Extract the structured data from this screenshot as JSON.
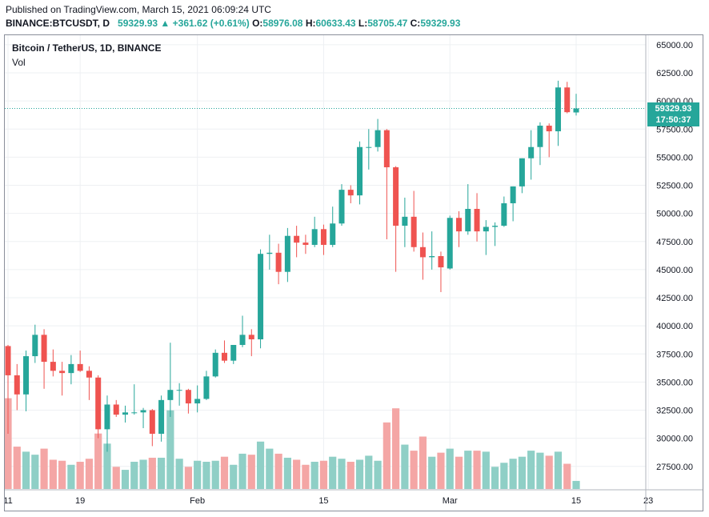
{
  "header": {
    "published": "Published on TradingView.com, March 15, 2021 06:09:24 UTC",
    "symbol": "BINANCE:BTCUSDT, D",
    "last": "59329.93",
    "arrow": "▲",
    "change": "+361.62 (+0.61%)",
    "o_label": "O:",
    "o_value": "58976.08",
    "h_label": "H:",
    "h_value": "60633.43",
    "l_label": "L:",
    "l_value": "58705.47",
    "c_label": "C:",
    "c_value": "59329.93"
  },
  "legend": {
    "title": "Bitcoin / TetherUS, 1D, BINANCE",
    "vol": "Vol"
  },
  "price_tag": {
    "price": "59329.93",
    "countdown": "17:50:37"
  },
  "colors": {
    "up": "#26a69a",
    "down": "#ef5350",
    "vol_up": "#8fcfc6",
    "vol_down": "#f4a6a5",
    "grid": "#eef0f3",
    "dotted": "#26a69a"
  },
  "chart_data": {
    "type": "candlestick",
    "title": "Bitcoin / TetherUS, 1D, BINANCE",
    "ylim": [
      23750,
      65625
    ],
    "y_ticks": [
      25000,
      27500,
      30000,
      32500,
      35000,
      37500,
      40000,
      42500,
      45000,
      47500,
      50000,
      52500,
      55000,
      57500,
      60000,
      62500,
      65000
    ],
    "y_tick_labels": [
      "27500.00",
      "30000.00",
      "32500.00",
      "35000.00",
      "37500.00",
      "40000.00",
      "42500.00",
      "45000.00",
      "47500.00",
      "50000.00",
      "52500.00",
      "55000.00",
      "57500.00",
      "60000.00",
      "62500.00",
      "65000.00"
    ],
    "x_ticks": [
      "11",
      "19",
      "Feb",
      "15",
      "Mar",
      "15",
      "23"
    ],
    "x_tick_dates": [
      "2021-01-11",
      "2021-01-19",
      "2021-02-01",
      "2021-02-15",
      "2021-03-01",
      "2021-03-15",
      "2021-03-23"
    ],
    "last_price": 59329.93,
    "volume_max_ratio": 1.0,
    "candles": [
      {
        "date": "2021-01-11",
        "o": 38200,
        "h": 38300,
        "l": 30400,
        "c": 35600,
        "v": 0.9
      },
      {
        "date": "2021-01-12",
        "o": 35600,
        "h": 36600,
        "l": 32500,
        "c": 33900,
        "v": 0.42
      },
      {
        "date": "2021-01-13",
        "o": 33900,
        "h": 37800,
        "l": 32400,
        "c": 37300,
        "v": 0.37
      },
      {
        "date": "2021-01-14",
        "o": 37300,
        "h": 40100,
        "l": 36700,
        "c": 39200,
        "v": 0.34
      },
      {
        "date": "2021-01-15",
        "o": 39200,
        "h": 39700,
        "l": 34400,
        "c": 36800,
        "v": 0.4
      },
      {
        "date": "2021-01-16",
        "o": 36800,
        "h": 37900,
        "l": 35500,
        "c": 36000,
        "v": 0.29
      },
      {
        "date": "2021-01-17",
        "o": 36000,
        "h": 36800,
        "l": 33800,
        "c": 35800,
        "v": 0.28
      },
      {
        "date": "2021-01-18",
        "o": 35800,
        "h": 37400,
        "l": 34800,
        "c": 36600,
        "v": 0.24
      },
      {
        "date": "2021-01-19",
        "o": 36600,
        "h": 37800,
        "l": 35900,
        "c": 36000,
        "v": 0.27
      },
      {
        "date": "2021-01-20",
        "o": 36000,
        "h": 36400,
        "l": 33400,
        "c": 35400,
        "v": 0.3
      },
      {
        "date": "2021-01-21",
        "o": 35400,
        "h": 35600,
        "l": 30000,
        "c": 30800,
        "v": 0.55
      },
      {
        "date": "2021-01-22",
        "o": 30800,
        "h": 33800,
        "l": 28800,
        "c": 33000,
        "v": 0.45
      },
      {
        "date": "2021-01-23",
        "o": 33000,
        "h": 33400,
        "l": 31900,
        "c": 32100,
        "v": 0.22
      },
      {
        "date": "2021-01-24",
        "o": 32100,
        "h": 32900,
        "l": 31400,
        "c": 32300,
        "v": 0.19
      },
      {
        "date": "2021-01-25",
        "o": 32300,
        "h": 34800,
        "l": 32100,
        "c": 32300,
        "v": 0.27
      },
      {
        "date": "2021-01-26",
        "o": 32300,
        "h": 32700,
        "l": 30900,
        "c": 32500,
        "v": 0.29
      },
      {
        "date": "2021-01-27",
        "o": 32500,
        "h": 32600,
        "l": 29300,
        "c": 30400,
        "v": 0.31
      },
      {
        "date": "2021-01-28",
        "o": 30400,
        "h": 33800,
        "l": 29700,
        "c": 33400,
        "v": 0.31
      },
      {
        "date": "2021-01-29",
        "o": 33400,
        "h": 38500,
        "l": 31900,
        "c": 34300,
        "v": 0.78
      },
      {
        "date": "2021-01-30",
        "o": 34300,
        "h": 34900,
        "l": 32900,
        "c": 34300,
        "v": 0.3
      },
      {
        "date": "2021-01-31",
        "o": 34300,
        "h": 34400,
        "l": 32200,
        "c": 33100,
        "v": 0.22
      },
      {
        "date": "2021-02-01",
        "o": 33100,
        "h": 34700,
        "l": 32300,
        "c": 33500,
        "v": 0.28
      },
      {
        "date": "2021-02-02",
        "o": 33500,
        "h": 36000,
        "l": 33400,
        "c": 35500,
        "v": 0.27
      },
      {
        "date": "2021-02-03",
        "o": 35500,
        "h": 37900,
        "l": 35400,
        "c": 37600,
        "v": 0.28
      },
      {
        "date": "2021-02-04",
        "o": 37600,
        "h": 38700,
        "l": 36700,
        "c": 36900,
        "v": 0.32
      },
      {
        "date": "2021-02-05",
        "o": 36900,
        "h": 38300,
        "l": 36600,
        "c": 38300,
        "v": 0.24
      },
      {
        "date": "2021-02-06",
        "o": 38300,
        "h": 40900,
        "l": 38100,
        "c": 39200,
        "v": 0.35
      },
      {
        "date": "2021-02-07",
        "o": 39200,
        "h": 39700,
        "l": 37300,
        "c": 38800,
        "v": 0.34
      },
      {
        "date": "2021-02-08",
        "o": 38800,
        "h": 46800,
        "l": 38000,
        "c": 46400,
        "v": 0.47
      },
      {
        "date": "2021-02-09",
        "o": 46400,
        "h": 48100,
        "l": 45000,
        "c": 46500,
        "v": 0.4
      },
      {
        "date": "2021-02-10",
        "o": 46500,
        "h": 47300,
        "l": 43700,
        "c": 44800,
        "v": 0.35
      },
      {
        "date": "2021-02-11",
        "o": 44800,
        "h": 48700,
        "l": 43900,
        "c": 48000,
        "v": 0.31
      },
      {
        "date": "2021-02-12",
        "o": 48000,
        "h": 48900,
        "l": 46100,
        "c": 47400,
        "v": 0.29
      },
      {
        "date": "2021-02-13",
        "o": 47400,
        "h": 48100,
        "l": 46400,
        "c": 47200,
        "v": 0.24
      },
      {
        "date": "2021-02-14",
        "o": 47200,
        "h": 49700,
        "l": 47000,
        "c": 48600,
        "v": 0.27
      },
      {
        "date": "2021-02-15",
        "o": 48600,
        "h": 49000,
        "l": 46300,
        "c": 47200,
        "v": 0.28
      },
      {
        "date": "2021-02-16",
        "o": 47200,
        "h": 50600,
        "l": 47000,
        "c": 49100,
        "v": 0.32
      },
      {
        "date": "2021-02-17",
        "o": 49100,
        "h": 52600,
        "l": 48900,
        "c": 52100,
        "v": 0.3
      },
      {
        "date": "2021-02-18",
        "o": 52100,
        "h": 52500,
        "l": 50900,
        "c": 51600,
        "v": 0.27
      },
      {
        "date": "2021-02-19",
        "o": 51600,
        "h": 56400,
        "l": 50800,
        "c": 55900,
        "v": 0.29
      },
      {
        "date": "2021-02-20",
        "o": 55900,
        "h": 57500,
        "l": 53900,
        "c": 55900,
        "v": 0.33
      },
      {
        "date": "2021-02-21",
        "o": 55900,
        "h": 58400,
        "l": 55500,
        "c": 57400,
        "v": 0.28
      },
      {
        "date": "2021-02-22",
        "o": 57400,
        "h": 57500,
        "l": 47700,
        "c": 54100,
        "v": 0.66
      },
      {
        "date": "2021-02-23",
        "o": 54100,
        "h": 54200,
        "l": 44800,
        "c": 48900,
        "v": 0.8
      },
      {
        "date": "2021-02-24",
        "o": 48900,
        "h": 51400,
        "l": 47000,
        "c": 49700,
        "v": 0.44
      },
      {
        "date": "2021-02-25",
        "o": 49700,
        "h": 52000,
        "l": 46600,
        "c": 47000,
        "v": 0.38
      },
      {
        "date": "2021-02-26",
        "o": 47000,
        "h": 48300,
        "l": 44100,
        "c": 46100,
        "v": 0.52
      },
      {
        "date": "2021-02-27",
        "o": 46100,
        "h": 48400,
        "l": 45000,
        "c": 46200,
        "v": 0.32
      },
      {
        "date": "2021-02-28",
        "o": 46200,
        "h": 46600,
        "l": 43000,
        "c": 45200,
        "v": 0.36
      },
      {
        "date": "2021-03-01",
        "o": 45100,
        "h": 49800,
        "l": 45000,
        "c": 49600,
        "v": 0.4
      },
      {
        "date": "2021-03-02",
        "o": 49600,
        "h": 50200,
        "l": 47000,
        "c": 48400,
        "v": 0.32
      },
      {
        "date": "2021-03-03",
        "o": 48400,
        "h": 52600,
        "l": 48100,
        "c": 50400,
        "v": 0.38
      },
      {
        "date": "2021-03-04",
        "o": 50400,
        "h": 51800,
        "l": 47500,
        "c": 48400,
        "v": 0.38
      },
      {
        "date": "2021-03-05",
        "o": 48400,
        "h": 49400,
        "l": 46300,
        "c": 48800,
        "v": 0.37
      },
      {
        "date": "2021-03-06",
        "o": 48800,
        "h": 49200,
        "l": 47100,
        "c": 48900,
        "v": 0.22
      },
      {
        "date": "2021-03-07",
        "o": 48900,
        "h": 51500,
        "l": 48800,
        "c": 50900,
        "v": 0.26
      },
      {
        "date": "2021-03-08",
        "o": 50900,
        "h": 52400,
        "l": 49300,
        "c": 52400,
        "v": 0.3
      },
      {
        "date": "2021-03-09",
        "o": 52400,
        "h": 54900,
        "l": 51800,
        "c": 54900,
        "v": 0.32
      },
      {
        "date": "2021-03-10",
        "o": 54900,
        "h": 57400,
        "l": 53000,
        "c": 55900,
        "v": 0.38
      },
      {
        "date": "2021-03-11",
        "o": 55900,
        "h": 58100,
        "l": 54300,
        "c": 57800,
        "v": 0.36
      },
      {
        "date": "2021-03-12",
        "o": 57800,
        "h": 58000,
        "l": 55000,
        "c": 57300,
        "v": 0.33
      },
      {
        "date": "2021-03-13",
        "o": 57300,
        "h": 61800,
        "l": 56000,
        "c": 61200,
        "v": 0.37
      },
      {
        "date": "2021-03-14",
        "o": 61200,
        "h": 61700,
        "l": 58900,
        "c": 59000,
        "v": 0.25
      },
      {
        "date": "2021-03-15",
        "o": 58976.08,
        "h": 60633.43,
        "l": 58705.47,
        "c": 59329.93,
        "v": 0.08
      }
    ]
  }
}
